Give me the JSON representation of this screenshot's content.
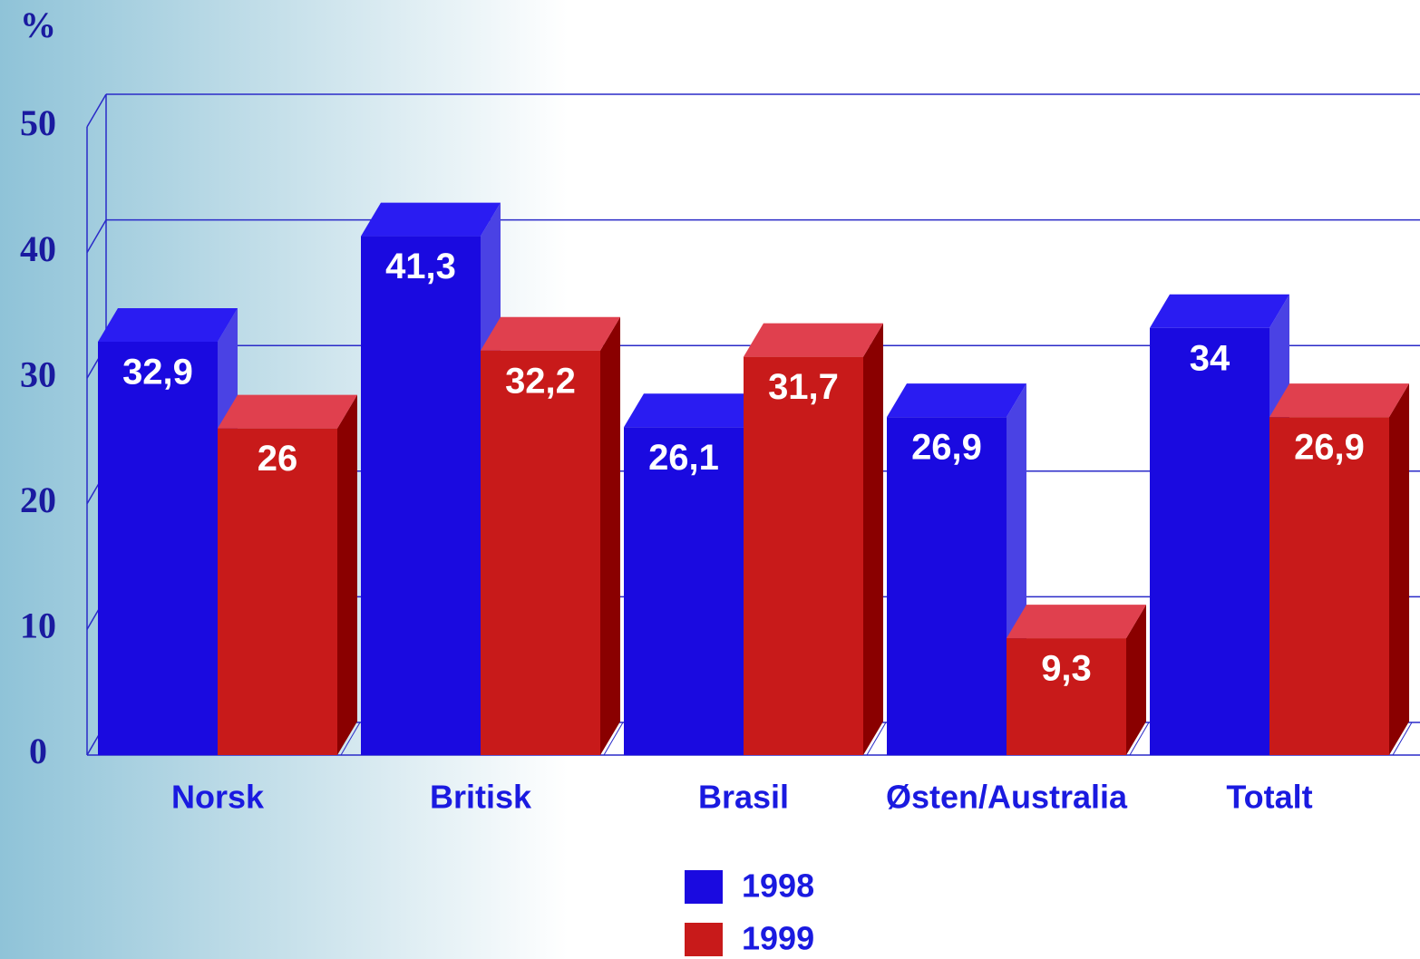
{
  "chart_data": {
    "type": "bar",
    "y_label": "%",
    "categories": [
      "Norsk",
      "Britisk",
      "Brasil",
      "Østen/Australia",
      "Totalt"
    ],
    "series": [
      {
        "name": "1998",
        "color": "#1a0ae0",
        "values": [
          32.9,
          41.3,
          26.1,
          26.9,
          34
        ],
        "value_labels": [
          "32,9",
          "41,3",
          "26,1",
          "26,9",
          "34"
        ]
      },
      {
        "name": "1999",
        "color": "#c81a1a",
        "values": [
          26,
          32.2,
          31.7,
          9.3,
          26.9
        ],
        "value_labels": [
          "26",
          "32,2",
          "31,7",
          "9,3",
          "26,9"
        ]
      }
    ],
    "ylim": [
      0,
      50
    ],
    "yticks": [
      0,
      10,
      20,
      30,
      40,
      50
    ],
    "grid": true,
    "legend": "bottom"
  }
}
